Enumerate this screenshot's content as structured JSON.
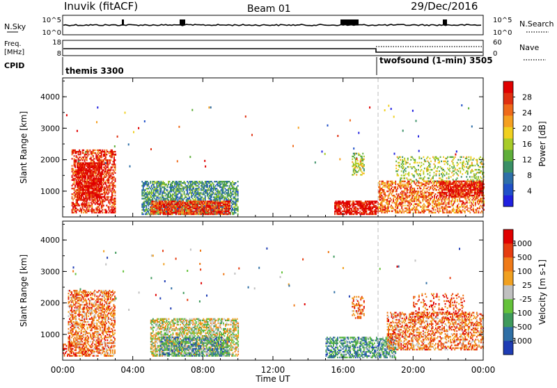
{
  "header": {
    "station": "Inuvik (fitACF)",
    "beam": "Beam 01",
    "date": "29/Dec/2016"
  },
  "top_panels": {
    "nsky": {
      "left_label": "N.Sky",
      "right_label": "N.Search",
      "ticks_left": [
        "10^5",
        "10^0"
      ],
      "ticks_right": [
        "10^5",
        "10^0"
      ]
    },
    "freq": {
      "left_label_1": "Freq.",
      "left_label_2": "[MHz]",
      "right_label": "Nave",
      "ticks_left": [
        "18",
        "8"
      ],
      "ticks_right": [
        "60",
        "0"
      ]
    },
    "cpid": {
      "label": "CPID",
      "segments": [
        {
          "label": "themis 3300",
          "start_hour": 0,
          "end_hour": 18
        },
        {
          "label": "twofsound (1-min) 3505",
          "start_hour": 18,
          "end_hour": 24
        }
      ]
    }
  },
  "chart_data": [
    {
      "type": "heatmap",
      "name": "power-panel",
      "quantity": "Power",
      "unit": "dB",
      "colorbar_label": "Power [dB]",
      "colorbar_ticks": [
        "28",
        "24",
        "20",
        "16",
        "12",
        "8",
        "4"
      ],
      "colorbar_colors": [
        "#2020e0",
        "#2050c8",
        "#2e6fa8",
        "#3a8f66",
        "#5fae3a",
        "#a8cc28",
        "#f0d020",
        "#f5a020",
        "#ef6a1a",
        "#e03010",
        "#e00000"
      ],
      "xlabel": "Time UT",
      "ylabel": "Slant Range [km]",
      "xlim": [
        0,
        24
      ],
      "ylim": [
        180,
        4600
      ],
      "y_ticks": [
        "1000",
        "2000",
        "3000",
        "4000"
      ],
      "x_ticks": [
        "00:00",
        "04:00",
        "08:00",
        "12:00",
        "16:00",
        "20:00",
        "00:00"
      ],
      "regions": [
        {
          "t": [
            0.5,
            3.0
          ],
          "r": [
            300,
            2300
          ],
          "level": 9,
          "density": 0.55
        },
        {
          "t": [
            0.8,
            2.2
          ],
          "r": [
            700,
            1900
          ],
          "level": 10,
          "density": 0.7
        },
        {
          "t": [
            4.5,
            10.0
          ],
          "r": [
            250,
            1300
          ],
          "level": 3,
          "density": 0.6
        },
        {
          "t": [
            5.0,
            9.5
          ],
          "r": [
            250,
            700
          ],
          "level": 9,
          "density": 0.75
        },
        {
          "t": [
            15.5,
            18.0
          ],
          "r": [
            250,
            700
          ],
          "level": 10,
          "density": 0.75
        },
        {
          "t": [
            18.0,
            24.0
          ],
          "r": [
            300,
            1300
          ],
          "level": 8,
          "density": 0.5
        },
        {
          "t": [
            21.5,
            24.0
          ],
          "r": [
            800,
            1300
          ],
          "level": 10,
          "density": 0.6
        },
        {
          "t": [
            19.0,
            24.0
          ],
          "r": [
            1300,
            2100
          ],
          "level": 5,
          "density": 0.25
        },
        {
          "t": [
            16.5,
            17.2
          ],
          "r": [
            1500,
            2200
          ],
          "level": 5,
          "density": 0.4
        }
      ]
    },
    {
      "type": "heatmap",
      "name": "velocity-panel",
      "quantity": "Velocity",
      "unit": "m s^-1",
      "colorbar_label": "Velocity [m s-1]",
      "colorbar_ticks": [
        "1000",
        "500",
        "100",
        "25",
        "-25",
        "-100",
        "-500",
        "-1000"
      ],
      "colorbar_colors": [
        "#1e3cb4",
        "#2f6fa5",
        "#3f9a5c",
        "#64c23a",
        "#c0c0c0",
        "#f0a020",
        "#ef7a18",
        "#e63c10",
        "#e00000"
      ],
      "xlabel": "Time UT",
      "ylabel": "Slant Range [km]",
      "xlim": [
        0,
        24
      ],
      "ylim": [
        180,
        4600
      ],
      "y_ticks": [
        "1000",
        "2000",
        "3000",
        "4000"
      ],
      "x_ticks": [
        "00:00",
        "04:00",
        "08:00",
        "12:00",
        "16:00",
        "20:00",
        "00:00"
      ],
      "regions": [
        {
          "t": [
            0.3,
            3.0
          ],
          "r": [
            300,
            2400
          ],
          "level": 6,
          "density": 0.5
        },
        {
          "t": [
            0.0,
            1.5
          ],
          "r": [
            300,
            700
          ],
          "level": 7,
          "density": 0.4
        },
        {
          "t": [
            5.0,
            10.0
          ],
          "r": [
            300,
            1500
          ],
          "level": 4,
          "density": 0.55
        },
        {
          "t": [
            5.5,
            9.5
          ],
          "r": [
            300,
            900
          ],
          "level": 2,
          "density": 0.5
        },
        {
          "t": [
            15.0,
            19.0
          ],
          "r": [
            250,
            900
          ],
          "level": 2,
          "density": 0.55
        },
        {
          "t": [
            18.5,
            24.0
          ],
          "r": [
            500,
            1700
          ],
          "level": 6,
          "density": 0.45
        },
        {
          "t": [
            20.0,
            23.0
          ],
          "r": [
            1500,
            2300
          ],
          "level": 7,
          "density": 0.2
        },
        {
          "t": [
            16.5,
            17.2
          ],
          "r": [
            1500,
            2200
          ],
          "level": 6,
          "density": 0.4
        }
      ]
    }
  ]
}
